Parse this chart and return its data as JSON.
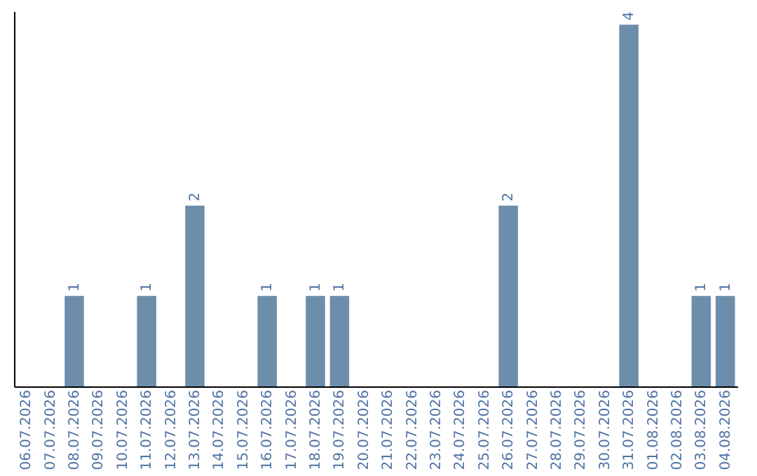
{
  "chart_data": {
    "type": "bar",
    "categories": [
      "06.07.2026",
      "07.07.2026",
      "08.07.2026",
      "09.07.2026",
      "10.07.2026",
      "11.07.2026",
      "12.07.2026",
      "13.07.2026",
      "14.07.2026",
      "15.07.2026",
      "16.07.2026",
      "17.07.2026",
      "18.07.2026",
      "19.07.2026",
      "20.07.2026",
      "21.07.2026",
      "22.07.2026",
      "23.07.2026",
      "24.07.2026",
      "25.07.2026",
      "26.07.2026",
      "27.07.2026",
      "28.07.2026",
      "29.07.2026",
      "30.07.2026",
      "31.07.2026",
      "01.08.2026",
      "02.08.2026",
      "03.08.2026",
      "04.08.2026"
    ],
    "values": [
      0,
      0,
      1,
      0,
      0,
      1,
      0,
      2,
      0,
      0,
      1,
      0,
      1,
      1,
      0,
      0,
      0,
      0,
      0,
      0,
      2,
      0,
      0,
      0,
      0,
      4,
      0,
      0,
      1,
      1
    ],
    "value_labels": [
      null,
      null,
      "1",
      null,
      null,
      "1",
      null,
      "2",
      null,
      null,
      "1",
      null,
      "1",
      "1",
      null,
      null,
      null,
      null,
      null,
      null,
      "2",
      null,
      null,
      null,
      null,
      "4",
      null,
      null,
      "1",
      "1"
    ],
    "color": "#6d8eab",
    "ylim": [
      0,
      4.15
    ],
    "tick_labels": "x",
    "grid": false
  }
}
